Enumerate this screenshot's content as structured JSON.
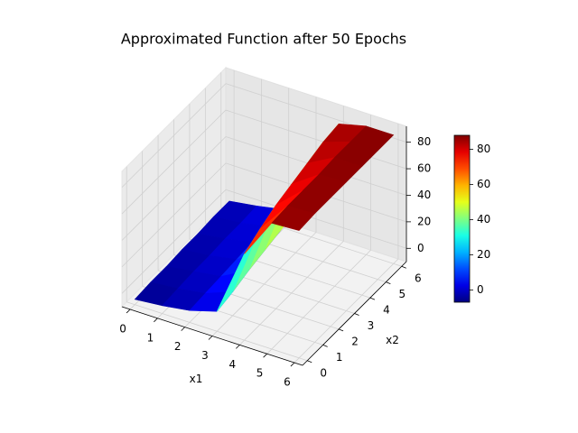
{
  "chart_data": {
    "type": "surface3d",
    "title": "Approximated Function after 50 Epochs",
    "xlabel": "x1",
    "ylabel": "x2",
    "x": [
      0,
      1,
      2,
      3,
      4,
      5,
      6
    ],
    "y": [
      0,
      1,
      2,
      3,
      4,
      5,
      6
    ],
    "z": [
      [
        -6,
        -5,
        -5,
        -4,
        -4,
        -3,
        -3
      ],
      [
        -4,
        -3,
        -2,
        -2,
        -1,
        -1,
        0
      ],
      [
        -1,
        0,
        1,
        2,
        3,
        3,
        4
      ],
      [
        5,
        8,
        12,
        15,
        18,
        22,
        25
      ],
      [
        55,
        62,
        68,
        72,
        76,
        80,
        82
      ],
      [
        85,
        86,
        86,
        86,
        87,
        87,
        87
      ],
      [
        86,
        87,
        87,
        87,
        87,
        87,
        87
      ]
    ],
    "xlim": [
      -0.3,
      6.3
    ],
    "ylim": [
      -0.3,
      6.3
    ],
    "zlim": [
      -10,
      92
    ],
    "xticks": [
      0,
      1,
      2,
      3,
      4,
      5,
      6
    ],
    "yticks": [
      0,
      1,
      2,
      3,
      4,
      5,
      6
    ],
    "zticks": [
      0,
      20,
      40,
      60,
      80
    ],
    "colormap": "jet",
    "clim": [
      -7,
      88
    ],
    "colorbar_ticks": [
      0,
      20,
      40,
      60,
      80
    ],
    "grid": true
  }
}
